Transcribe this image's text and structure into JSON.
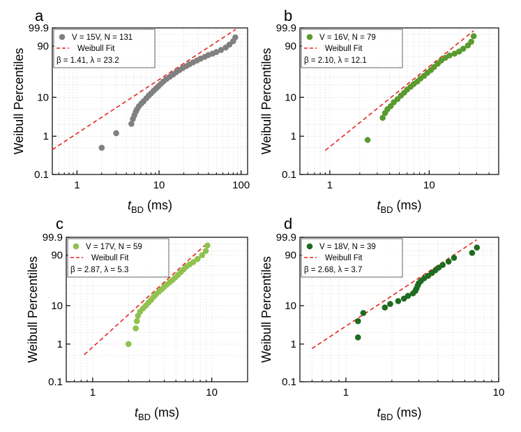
{
  "figure": {
    "y_axis_title": "Weibull Percentiles",
    "x_axis_title_italic": "t",
    "x_axis_title_sub": "BD",
    "x_axis_title_unit": " (ms)",
    "fit_label": "Weibull Fit",
    "fit_color": "#e8231f"
  },
  "chart_data": [
    {
      "type": "scatter",
      "panel": "a",
      "title": "V = 15V, N = 131",
      "legend_series": "V = 15V, N = 131",
      "legend_fit": "Weibull Fit",
      "params_text": "β = 1.41, λ = 23.2",
      "beta": 1.41,
      "lambda": 23.2,
      "color": "#808080",
      "xscale": "log",
      "xlim": [
        0.5,
        120
      ],
      "xticks": [
        1,
        10,
        100
      ],
      "xticklabels": [
        "1",
        "10",
        "100"
      ],
      "yscale": "weibull",
      "ylim": [
        0.1,
        99.9
      ],
      "yticks": [
        0.1,
        1,
        10,
        90,
        99.9
      ],
      "yticklabels": [
        "0.1",
        "1",
        "10",
        "90",
        "99.9"
      ],
      "fit_x": [
        0.5,
        86
      ],
      "points": [
        [
          2.0,
          0.5
        ],
        [
          3.0,
          1.2
        ],
        [
          4.6,
          2.1
        ],
        [
          4.8,
          2.8
        ],
        [
          5.0,
          3.5
        ],
        [
          5.2,
          4.3
        ],
        [
          5.4,
          5.0
        ],
        [
          5.7,
          6.0
        ],
        [
          6.1,
          7.0
        ],
        [
          6.5,
          8.0
        ],
        [
          7.0,
          9.5
        ],
        [
          7.5,
          11.0
        ],
        [
          8.0,
          12.5
        ],
        [
          8.6,
          14.5
        ],
        [
          9.2,
          16.5
        ],
        [
          9.8,
          18.5
        ],
        [
          10.5,
          21.0
        ],
        [
          11.3,
          24.0
        ],
        [
          12.3,
          27.0
        ],
        [
          13.5,
          30.5
        ],
        [
          14.8,
          34.0
        ],
        [
          16.2,
          38.0
        ],
        [
          17.8,
          42.0
        ],
        [
          19.5,
          46.0
        ],
        [
          21.5,
          50.0
        ],
        [
          23.5,
          54.0
        ],
        [
          26.0,
          58.0
        ],
        [
          29.0,
          62.0
        ],
        [
          32.0,
          66.0
        ],
        [
          36.0,
          70.0
        ],
        [
          40.0,
          74.0
        ],
        [
          45.0,
          77.0
        ],
        [
          50.0,
          80.0
        ],
        [
          57.0,
          84.0
        ],
        [
          65.0,
          88.0
        ],
        [
          72.0,
          92.0
        ],
        [
          80.0,
          95.5
        ],
        [
          85.0,
          98.0
        ]
      ]
    },
    {
      "type": "scatter",
      "panel": "b",
      "title": "V = 16V, N = 79",
      "legend_series": "V = 16V, N = 79",
      "legend_fit": "Weibull Fit",
      "params_text": "β = 2.10, λ = 12.1",
      "beta": 2.1,
      "lambda": 12.1,
      "color": "#5a9a2e",
      "xscale": "log",
      "xlim": [
        0.5,
        50
      ],
      "xticks": [
        1,
        10
      ],
      "xticklabels": [
        "1",
        "10"
      ],
      "yscale": "weibull",
      "ylim": [
        0.1,
        99.9
      ],
      "yticks": [
        0.1,
        1,
        10,
        90,
        99.9
      ],
      "yticklabels": [
        "0.1",
        "1",
        "10",
        "90",
        "99.9"
      ],
      "fit_x": [
        0.9,
        28
      ],
      "points": [
        [
          2.4,
          0.8
        ],
        [
          3.4,
          3.0
        ],
        [
          3.6,
          4.0
        ],
        [
          3.8,
          5.0
        ],
        [
          4.1,
          6.0
        ],
        [
          4.4,
          7.5
        ],
        [
          4.8,
          9.0
        ],
        [
          5.2,
          11.0
        ],
        [
          5.6,
          13.0
        ],
        [
          6.0,
          15.5
        ],
        [
          6.5,
          18.0
        ],
        [
          7.0,
          21.0
        ],
        [
          7.6,
          24.0
        ],
        [
          8.2,
          28.0
        ],
        [
          8.9,
          32.0
        ],
        [
          9.6,
          37.0
        ],
        [
          10.4,
          42.0
        ],
        [
          11.2,
          48.0
        ],
        [
          12.2,
          55.0
        ],
        [
          13.2,
          62.0
        ],
        [
          14.5,
          68.0
        ],
        [
          16.0,
          73.0
        ],
        [
          18.0,
          77.0
        ],
        [
          20.0,
          81.0
        ],
        [
          22.0,
          86.0
        ],
        [
          24.5,
          91.0
        ],
        [
          26.5,
          95.0
        ],
        [
          28.0,
          98.5
        ]
      ]
    },
    {
      "type": "scatter",
      "panel": "c",
      "title": "V = 17V, N = 59",
      "legend_series": "V = 17V, N = 59",
      "legend_fit": "Weibull Fit",
      "params_text": "β = 2.87, λ = 5.3",
      "beta": 2.87,
      "lambda": 5.3,
      "color": "#8fc24f",
      "xscale": "log",
      "xlim": [
        0.6,
        20
      ],
      "xticks": [
        1,
        10
      ],
      "xticklabels": [
        "1",
        "10"
      ],
      "yscale": "weibull",
      "ylim": [
        0.1,
        99.9
      ],
      "yticks": [
        0.1,
        1,
        10,
        90,
        99.9
      ],
      "yticklabels": [
        "0.1",
        "1",
        "10",
        "90",
        "99.9"
      ],
      "fit_x": [
        0.85,
        9.3
      ],
      "points": [
        [
          2.0,
          1.0
        ],
        [
          2.3,
          2.6
        ],
        [
          2.35,
          4.0
        ],
        [
          2.4,
          5.5
        ],
        [
          2.5,
          7.0
        ],
        [
          2.65,
          8.5
        ],
        [
          2.8,
          10.0
        ],
        [
          2.95,
          12.0
        ],
        [
          3.1,
          14.0
        ],
        [
          3.25,
          16.5
        ],
        [
          3.4,
          19.0
        ],
        [
          3.6,
          22.0
        ],
        [
          3.8,
          25.0
        ],
        [
          4.0,
          28.5
        ],
        [
          4.2,
          32.0
        ],
        [
          4.45,
          36.0
        ],
        [
          4.7,
          40.0
        ],
        [
          4.95,
          45.0
        ],
        [
          5.2,
          50.0
        ],
        [
          5.5,
          56.0
        ],
        [
          5.8,
          62.0
        ],
        [
          6.1,
          68.0
        ],
        [
          6.5,
          73.0
        ],
        [
          7.0,
          78.0
        ],
        [
          7.6,
          84.0
        ],
        [
          8.3,
          90.0
        ],
        [
          8.9,
          95.0
        ],
        [
          9.2,
          98.5
        ]
      ]
    },
    {
      "type": "scatter",
      "panel": "d",
      "title": "V = 18V, N = 39",
      "legend_series": "V = 18V, N = 39",
      "legend_fit": "Weibull Fit",
      "params_text": "β = 2.68, λ = 3.7",
      "beta": 2.68,
      "lambda": 3.7,
      "color": "#1f6b1f",
      "xscale": "log",
      "xlim": [
        0.5,
        10
      ],
      "xticks": [
        1,
        10
      ],
      "xticklabels": [
        "1",
        "10"
      ],
      "yscale": "weibull",
      "ylim": [
        0.1,
        99.9
      ],
      "yticks": [
        0.1,
        1,
        10,
        90,
        99.9
      ],
      "yticklabels": [
        "0.1",
        "1",
        "10",
        "90",
        "99.9"
      ],
      "fit_x": [
        0.6,
        7.2
      ],
      "points": [
        [
          1.2,
          1.5
        ],
        [
          1.2,
          4.0
        ],
        [
          1.3,
          6.5
        ],
        [
          1.8,
          9.0
        ],
        [
          1.95,
          11.0
        ],
        [
          2.2,
          13.0
        ],
        [
          2.4,
          15.0
        ],
        [
          2.55,
          17.5
        ],
        [
          2.75,
          20.0
        ],
        [
          2.85,
          23.0
        ],
        [
          2.9,
          26.0
        ],
        [
          2.95,
          30.0
        ],
        [
          3.0,
          34.0
        ],
        [
          3.1,
          38.0
        ],
        [
          3.25,
          43.0
        ],
        [
          3.45,
          48.0
        ],
        [
          3.65,
          54.0
        ],
        [
          3.85,
          60.0
        ],
        [
          4.05,
          66.0
        ],
        [
          4.3,
          72.0
        ],
        [
          4.7,
          79.0
        ],
        [
          5.1,
          86.0
        ],
        [
          6.7,
          93.0
        ],
        [
          7.2,
          97.5
        ]
      ]
    }
  ]
}
